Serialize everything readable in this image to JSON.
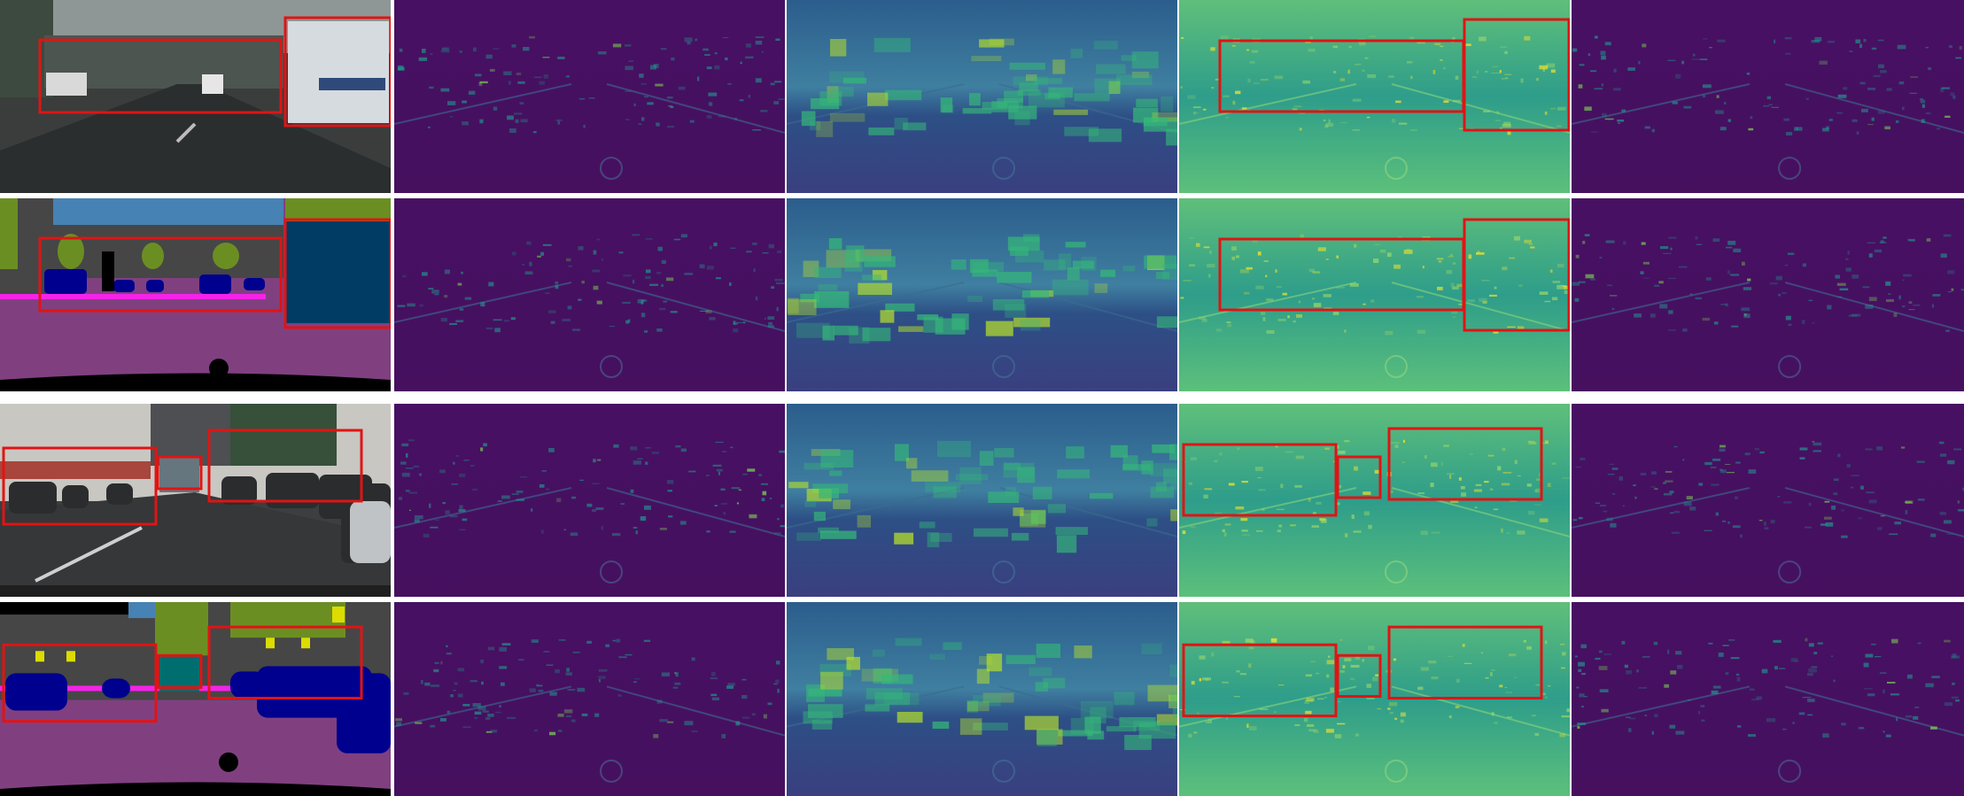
{
  "figure": {
    "rows": [
      {
        "id": "row-1",
        "kind": "rgb-image",
        "scene": "street-bus"
      },
      {
        "id": "row-2",
        "kind": "segmentation",
        "scene": "street-bus"
      },
      {
        "id": "row-3",
        "kind": "rgb-image",
        "scene": "street-parked-cars"
      },
      {
        "id": "row-4",
        "kind": "segmentation",
        "scene": "street-parked-cars"
      }
    ],
    "columns": [
      "input",
      "feature-map-1",
      "feature-map-2",
      "feature-map-3",
      "feature-map-4"
    ],
    "colors": {
      "highlight_box": "#e01414",
      "viridis_dark": "#440154",
      "viridis_mid": "#21918c",
      "viridis_light": "#fde725",
      "seg_road": "#804080",
      "seg_vehicle": "#00008e",
      "seg_vegetation": "#6b8e23",
      "seg_building": "#464646",
      "seg_sky": "#4682b4",
      "seg_sidewalk": "#f423e8",
      "seg_bus": "#003c64"
    }
  }
}
